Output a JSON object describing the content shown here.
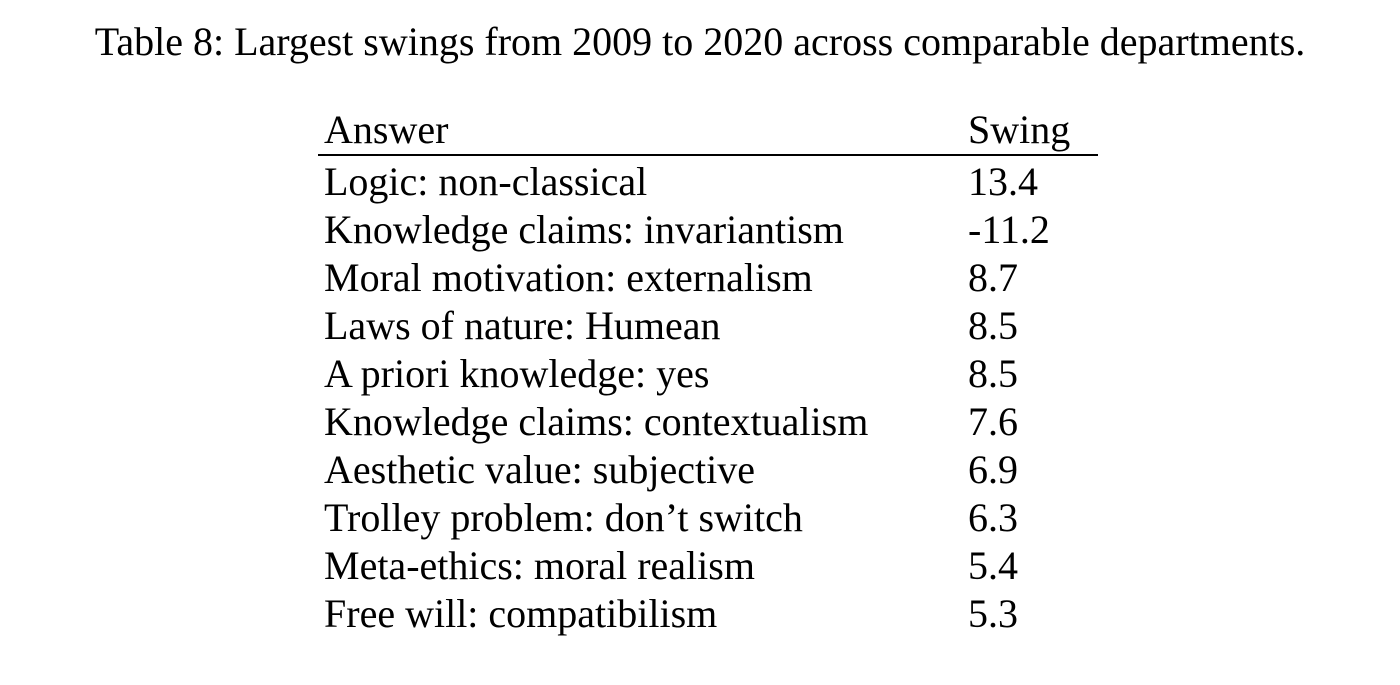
{
  "page": {
    "background": "#ffffff",
    "text_color": "#000000"
  },
  "caption": "Table 8: Largest swings from 2009 to 2020 across comparable departments.",
  "table": {
    "columns": [
      "Answer",
      "Swing"
    ],
    "rows": [
      {
        "answer": "Logic: non-classical",
        "swing": "13.4"
      },
      {
        "answer": "Knowledge claims: invariantism",
        "swing": "-11.2"
      },
      {
        "answer": "Moral motivation: externalism",
        "swing": "8.7"
      },
      {
        "answer": "Laws of nature: Humean",
        "swing": "8.5"
      },
      {
        "answer": "A priori knowledge: yes",
        "swing": "8.5"
      },
      {
        "answer": "Knowledge claims: contextualism",
        "swing": "7.6"
      },
      {
        "answer": "Aesthetic value: subjective",
        "swing": "6.9"
      },
      {
        "answer": "Trolley problem: don’t switch",
        "swing": "6.3"
      },
      {
        "answer": "Meta-ethics: moral realism",
        "swing": "5.4"
      },
      {
        "answer": "Free will: compatibilism",
        "swing": "5.3"
      }
    ]
  }
}
